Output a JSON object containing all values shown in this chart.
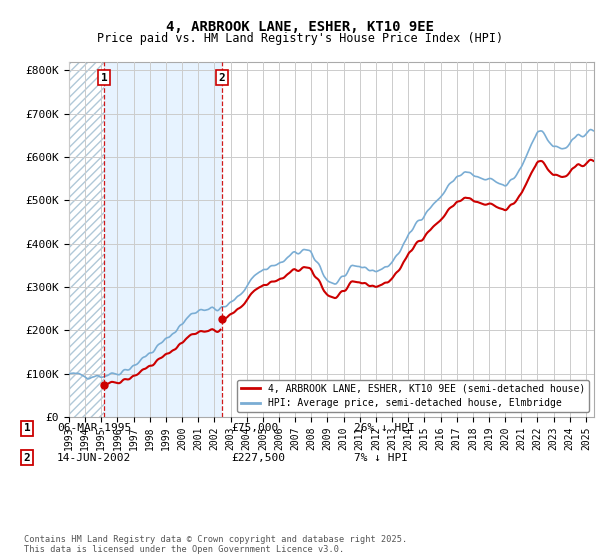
{
  "title": "4, ARBROOK LANE, ESHER, KT10 9EE",
  "subtitle": "Price paid vs. HM Land Registry's House Price Index (HPI)",
  "ylim": [
    0,
    820000
  ],
  "yticks": [
    0,
    100000,
    200000,
    300000,
    400000,
    500000,
    600000,
    700000,
    800000
  ],
  "ytick_labels": [
    "£0",
    "£100K",
    "£200K",
    "£300K",
    "£400K",
    "£500K",
    "£600K",
    "£700K",
    "£800K"
  ],
  "sale_dates": [
    1995.18,
    2002.45
  ],
  "sale_prices": [
    75000,
    227500
  ],
  "sale_labels": [
    "1",
    "2"
  ],
  "sale_color": "#cc0000",
  "hpi_color": "#7aadd4",
  "shade_color": "#ddeeff",
  "hatch_color": "#ccddee",
  "legend_entries": [
    "4, ARBROOK LANE, ESHER, KT10 9EE (semi-detached house)",
    "HPI: Average price, semi-detached house, Elmbridge"
  ],
  "table_rows": [
    {
      "num": "1",
      "date": "06-MAR-1995",
      "price": "£75,000",
      "hpi": "26% ↓ HPI"
    },
    {
      "num": "2",
      "date": "14-JUN-2002",
      "price": "£227,500",
      "hpi": "7% ↓ HPI"
    }
  ],
  "footnote": "Contains HM Land Registry data © Crown copyright and database right 2025.\nThis data is licensed under the Open Government Licence v3.0.",
  "background_color": "#ffffff",
  "grid_color": "#cccccc",
  "xlim_start": 1993.0,
  "xlim_end": 2025.5
}
